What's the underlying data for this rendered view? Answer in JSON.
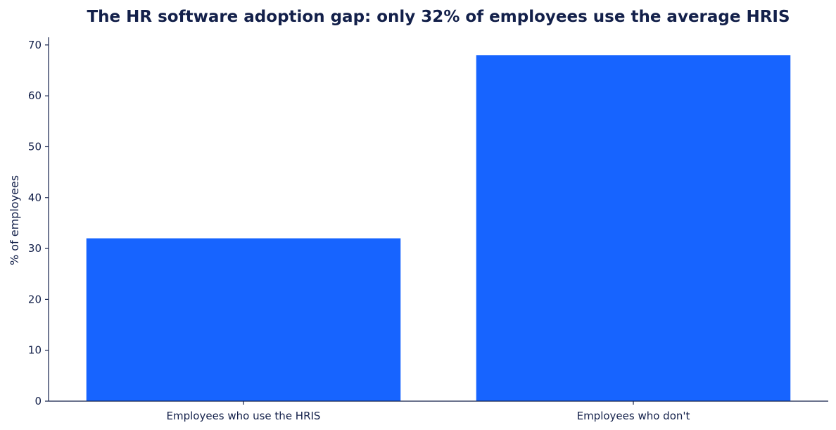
{
  "chart_data": {
    "type": "bar",
    "title": "The HR software adoption gap: only 32% of employees use the average HRIS",
    "categories": [
      "Employees who use the HRIS",
      "Employees who don't"
    ],
    "values": [
      32,
      68
    ],
    "xlabel": "",
    "ylabel": "% of employees",
    "ylim": [
      0,
      71.5
    ],
    "yticks": [
      0,
      10,
      20,
      30,
      40,
      50,
      60,
      70
    ],
    "bar_color": "#1764ff",
    "grid": false,
    "legend": "none"
  }
}
